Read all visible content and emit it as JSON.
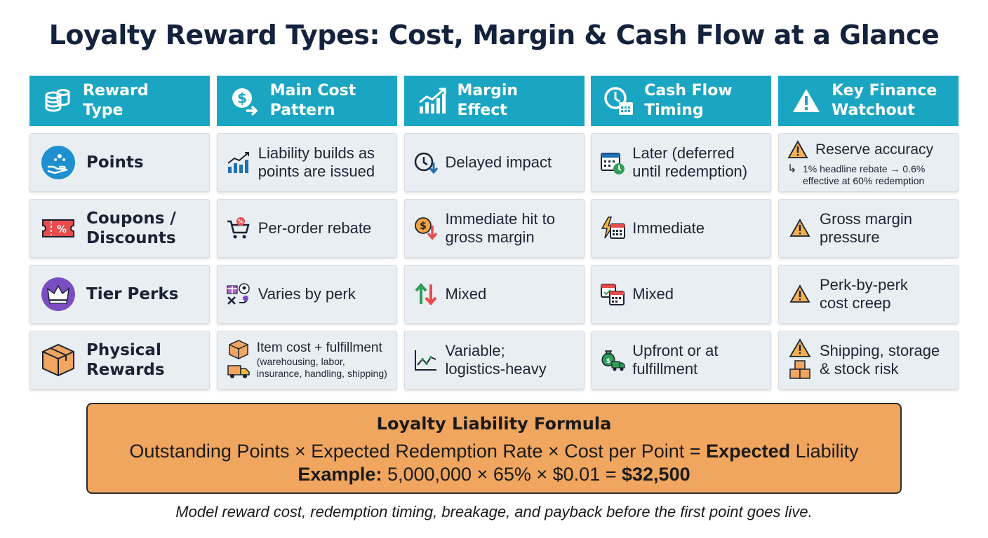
{
  "title": "Loyalty Reward Types: Cost, Margin & Cash Flow at a Glance",
  "headers": [
    {
      "line1": "Reward",
      "line2": "Type",
      "icon": "coins-icon"
    },
    {
      "line1": "Main Cost",
      "line2": "Pattern",
      "icon": "dollar-arrow-icon"
    },
    {
      "line1": "Margin",
      "line2": "Effect",
      "icon": "bar-chart-icon"
    },
    {
      "line1": "Cash Flow",
      "line2": "Timing",
      "icon": "clock-calendar-icon"
    },
    {
      "line1": "Key Finance",
      "line2": "Watchout",
      "icon": "warning-icon"
    }
  ],
  "rows": [
    {
      "type": "Points",
      "cost_l1": "Liability builds as",
      "cost_l2": "points are issued",
      "margin_l1": "Delayed impact",
      "cash_l1": "Later (deferred",
      "cash_l2": "until redemption)",
      "watch_l1": "Reserve accuracy",
      "watch_note_l1": "1% headline rebate → 0.6%",
      "watch_note_l2": "effective at 60% redemption"
    },
    {
      "type_l1": "Coupons /",
      "type_l2": "Discounts",
      "cost_l1": "Per-order rebate",
      "margin_l1": "Immediate hit to",
      "margin_l2": "gross margin",
      "cash_l1": "Immediate",
      "watch_l1": "Gross margin",
      "watch_l2": "pressure"
    },
    {
      "type": "Tier Perks",
      "cost_l1": "Varies by perk",
      "margin_l1": "Mixed",
      "cash_l1": "Mixed",
      "watch_l1": "Perk-by-perk",
      "watch_l2": "cost creep"
    },
    {
      "type_l1": "Physical",
      "type_l2": "Rewards",
      "cost_l1": "Item cost + fulfillment",
      "cost_note_l1": "(warehousing, labor,",
      "cost_note_l2": "insurance, handling, shipping)",
      "margin_l1": "Variable;",
      "margin_l2": "logistics-heavy",
      "cash_l1": "Upfront or at",
      "cash_l2": "fulfillment",
      "watch_l1": "Shipping, storage",
      "watch_l2": "& stock risk"
    }
  ],
  "formula": {
    "title": "Loyalty Liability Formula",
    "line_a": "Outstanding Points × Expected Redemption Rate × Cost per Point = ",
    "line_a_bold": "Expected",
    "line_a_end": " Liability",
    "example_label": "Example:",
    "example_calc": " 5,000,000 × 65% × $0.01 = ",
    "example_result": "$32,500"
  },
  "footer": "Model reward cost, redemption timing, breakage, and payback before the first point goes live.",
  "colors": {
    "header": "#1aa6c2",
    "cell": "#e9eef3",
    "formula": "#f0a65f",
    "title": "#14233d"
  }
}
